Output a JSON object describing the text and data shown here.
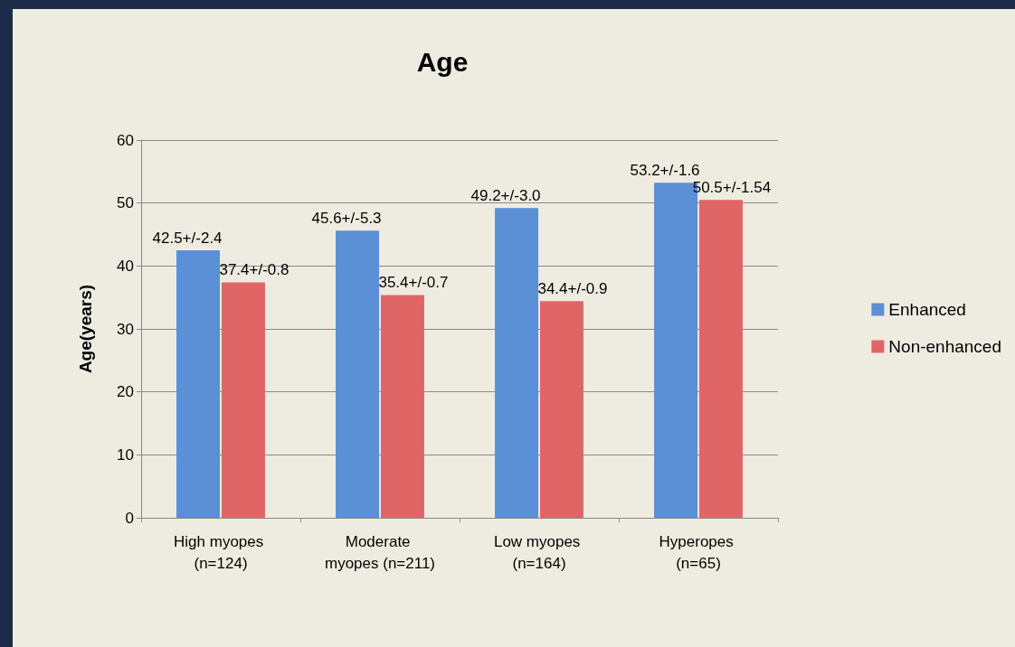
{
  "chart_data": {
    "type": "bar",
    "title": "Age",
    "ylabel": "Age(years)",
    "categories": [
      "High myopes (n=124)",
      "Moderate myopes (n=211)",
      "Low myopes (n=164)",
      "Hyperopes (n=65)"
    ],
    "series": [
      {
        "name": "Enhanced",
        "color": "#5b8fd6",
        "values": [
          42.5,
          45.6,
          49.2,
          53.2
        ],
        "value_labels": [
          "42.5+/-2.4",
          "45.6+/-5.3",
          "49.2+/-3.0",
          "53.2+/-1.6"
        ]
      },
      {
        "name": "Non-enhanced",
        "color": "#e06666",
        "values": [
          37.4,
          35.4,
          34.4,
          50.5
        ],
        "value_labels": [
          "37.4+/-0.8",
          "35.4+/-0.7",
          "34.4+/-0.9",
          "50.5+/-1.54"
        ]
      }
    ],
    "ylim": [
      0,
      60
    ],
    "yticks": [
      0,
      10,
      20,
      30,
      40,
      50,
      60
    ],
    "grid": "y",
    "legend": "right"
  }
}
